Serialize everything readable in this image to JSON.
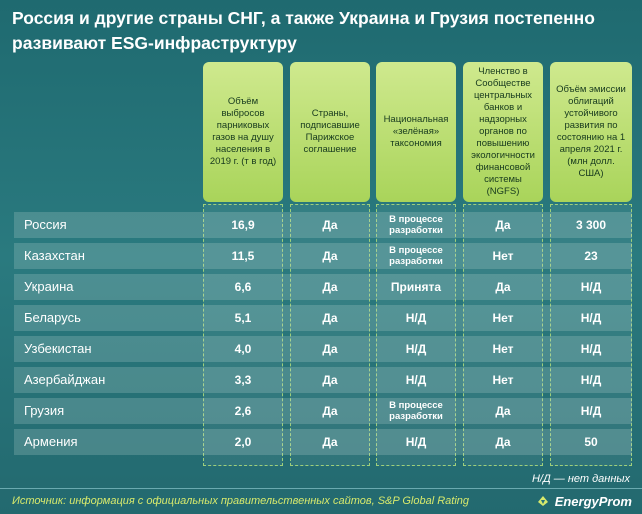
{
  "title": "Россия и другие страны СНГ, а также Украина и Грузия постепенно развивают ESG-инфраструктуру",
  "headers": [
    "Объём выбросов парниковых газов на душу населения в 2019 г. (т в год)",
    "Страны, подписавшие Парижское соглашение",
    "Национальная «зелёная» таксономия",
    "Членство в Сообществе центральных банков и надзорных органов по повышению экологичности финансовой системы (NGFS)",
    "Объём эмиссии облигаций устойчивого развития по состоянию на 1 апреля 2021 г. (млн долл. США)"
  ],
  "rows": [
    {
      "country": "Россия",
      "emissions": "16,9",
      "paris": "Да",
      "taxonomy": "В процессе разработки",
      "ngfs": "Да",
      "bonds": "3 300"
    },
    {
      "country": "Казахстан",
      "emissions": "11,5",
      "paris": "Да",
      "taxonomy": "В процессе разработки",
      "ngfs": "Нет",
      "bonds": "23"
    },
    {
      "country": "Украина",
      "emissions": "6,6",
      "paris": "Да",
      "taxonomy": "Принята",
      "ngfs": "Да",
      "bonds": "Н/Д"
    },
    {
      "country": "Беларусь",
      "emissions": "5,1",
      "paris": "Да",
      "taxonomy": "Н/Д",
      "ngfs": "Нет",
      "bonds": "Н/Д"
    },
    {
      "country": "Узбекистан",
      "emissions": "4,0",
      "paris": "Да",
      "taxonomy": "Н/Д",
      "ngfs": "Нет",
      "bonds": "Н/Д"
    },
    {
      "country": "Азербайджан",
      "emissions": "3,3",
      "paris": "Да",
      "taxonomy": "Н/Д",
      "ngfs": "Нет",
      "bonds": "Н/Д"
    },
    {
      "country": "Грузия",
      "emissions": "2,6",
      "paris": "Да",
      "taxonomy": "В процессе разработки",
      "ngfs": "Да",
      "bonds": "Н/Д"
    },
    {
      "country": "Армения",
      "emissions": "2,0",
      "paris": "Да",
      "taxonomy": "Н/Д",
      "ngfs": "Да",
      "bonds": "50"
    }
  ],
  "legend_note": "Н/Д — нет данных",
  "source": "Источник: информация с официальных правительственных сайтов, S&P Global Rating",
  "brand": "EnergyProm",
  "colors": {
    "header_bg": "#b5dc6a",
    "background": "#24707a",
    "source_text": "#d8e96c"
  }
}
